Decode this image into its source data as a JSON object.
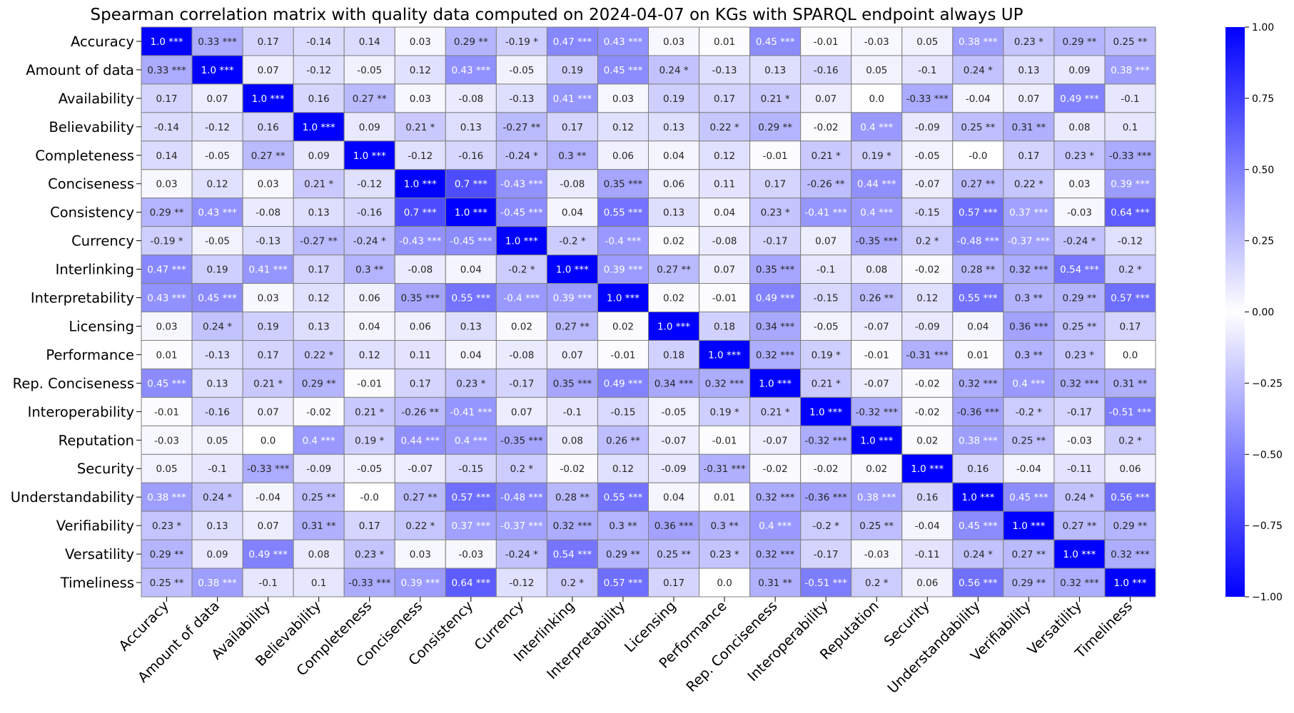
{
  "chart_data": {
    "type": "heatmap",
    "title": "Spearman correlation matrix with quality data computed on 2024-04-07 on KGs with SPARQL endpoint always UP",
    "labels": [
      "Accuracy",
      "Amount of data",
      "Availability",
      "Believability",
      "Completeness",
      "Conciseness",
      "Consistency",
      "Currency",
      "Interlinking",
      "Interpretability",
      "Licensing",
      "Performance",
      "Rep. Conciseness",
      "Interoperability",
      "Reputation",
      "Security",
      "Understandability",
      "Verifiability",
      "Versatility",
      "Timeliness"
    ],
    "cells": [
      [
        "1.0 ***",
        "0.33 ***",
        "0.17",
        "-0.14",
        "0.14",
        "0.03",
        "0.29 **",
        "-0.19 *",
        "0.47 ***",
        "0.43 ***",
        "0.03",
        "0.01",
        "0.45 ***",
        "-0.01",
        "-0.03",
        "0.05",
        "0.38 ***",
        "0.23 *",
        "0.29 **",
        "0.25 **"
      ],
      [
        "0.33 ***",
        "1.0 ***",
        "0.07",
        "-0.12",
        "-0.05",
        "0.12",
        "0.43 ***",
        "-0.05",
        "0.19",
        "0.45 ***",
        "0.24 *",
        "-0.13",
        "0.13",
        "-0.16",
        "0.05",
        "-0.1",
        "0.24 *",
        "0.13",
        "0.09",
        "0.38 ***"
      ],
      [
        "0.17",
        "0.07",
        "1.0 ***",
        "0.16",
        "0.27 **",
        "0.03",
        "-0.08",
        "-0.13",
        "0.41 ***",
        "0.03",
        "0.19",
        "0.17",
        "0.21 *",
        "0.07",
        "0.0",
        "-0.33 ***",
        "-0.04",
        "0.07",
        "0.49 ***",
        "-0.1"
      ],
      [
        "-0.14",
        "-0.12",
        "0.16",
        "1.0 ***",
        "0.09",
        "0.21 *",
        "0.13",
        "-0.27 **",
        "0.17",
        "0.12",
        "0.13",
        "0.22 *",
        "0.29 **",
        "-0.02",
        "0.4 ***",
        "-0.09",
        "0.25 **",
        "0.31 **",
        "0.08",
        "0.1"
      ],
      [
        "0.14",
        "-0.05",
        "0.27 **",
        "0.09",
        "1.0 ***",
        "-0.12",
        "-0.16",
        "-0.24 *",
        "0.3 **",
        "0.06",
        "0.04",
        "0.12",
        "-0.01",
        "0.21 *",
        "0.19 *",
        "-0.05",
        "-0.0",
        "0.17",
        "0.23 *",
        "-0.33 ***"
      ],
      [
        "0.03",
        "0.12",
        "0.03",
        "0.21 *",
        "-0.12",
        "1.0 ***",
        "0.7 ***",
        "-0.43 ***",
        "-0.08",
        "0.35 ***",
        "0.06",
        "0.11",
        "0.17",
        "-0.26 **",
        "0.44 ***",
        "-0.07",
        "0.27 **",
        "0.22 *",
        "0.03",
        "0.39 ***"
      ],
      [
        "0.29 **",
        "0.43 ***",
        "-0.08",
        "0.13",
        "-0.16",
        "0.7 ***",
        "1.0 ***",
        "-0.45 ***",
        "0.04",
        "0.55 ***",
        "0.13",
        "0.04",
        "0.23 *",
        "-0.41 ***",
        "0.4 ***",
        "-0.15",
        "0.57 ***",
        "0.37 ***",
        "-0.03",
        "0.64 ***"
      ],
      [
        "-0.19 *",
        "-0.05",
        "-0.13",
        "-0.27 **",
        "-0.24 *",
        "-0.43 ***",
        "-0.45 ***",
        "1.0 ***",
        "-0.2 *",
        "-0.4 ***",
        "0.02",
        "-0.08",
        "-0.17",
        "0.07",
        "-0.35 ***",
        "0.2 *",
        "-0.48 ***",
        "-0.37 ***",
        "-0.24 *",
        "-0.12"
      ],
      [
        "0.47 ***",
        "0.19",
        "0.41 ***",
        "0.17",
        "0.3 **",
        "-0.08",
        "0.04",
        "-0.2 *",
        "1.0 ***",
        "0.39 ***",
        "0.27 **",
        "0.07",
        "0.35 ***",
        "-0.1",
        "0.08",
        "-0.02",
        "0.28 **",
        "0.32 ***",
        "0.54 ***",
        "0.2 *"
      ],
      [
        "0.43 ***",
        "0.45 ***",
        "0.03",
        "0.12",
        "0.06",
        "0.35 ***",
        "0.55 ***",
        "-0.4 ***",
        "0.39 ***",
        "1.0 ***",
        "0.02",
        "-0.01",
        "0.49 ***",
        "-0.15",
        "0.26 **",
        "0.12",
        "0.55 ***",
        "0.3 **",
        "0.29 **",
        "0.57 ***"
      ],
      [
        "0.03",
        "0.24 *",
        "0.19",
        "0.13",
        "0.04",
        "0.06",
        "0.13",
        "0.02",
        "0.27 **",
        "0.02",
        "1.0 ***",
        "0.18",
        "0.34 ***",
        "-0.05",
        "-0.07",
        "-0.09",
        "0.04",
        "0.36 ***",
        "0.25 **",
        "0.17"
      ],
      [
        "0.01",
        "-0.13",
        "0.17",
        "0.22 *",
        "0.12",
        "0.11",
        "0.04",
        "-0.08",
        "0.07",
        "-0.01",
        "0.18",
        "1.0 ***",
        "0.32 ***",
        "0.19 *",
        "-0.01",
        "-0.31 ***",
        "0.01",
        "0.3 **",
        "0.23 *",
        "0.0"
      ],
      [
        "0.45 ***",
        "0.13",
        "0.21 *",
        "0.29 **",
        "-0.01",
        "0.17",
        "0.23 *",
        "-0.17",
        "0.35 ***",
        "0.49 ***",
        "0.34 ***",
        "0.32 ***",
        "1.0 ***",
        "0.21 *",
        "-0.07",
        "-0.02",
        "0.32 ***",
        "0.4 ***",
        "0.32 ***",
        "0.31 **"
      ],
      [
        "-0.01",
        "-0.16",
        "0.07",
        "-0.02",
        "0.21 *",
        "-0.26 **",
        "-0.41 ***",
        "0.07",
        "-0.1",
        "-0.15",
        "-0.05",
        "0.19 *",
        "0.21 *",
        "1.0 ***",
        "-0.32 ***",
        "-0.02",
        "-0.36 ***",
        "-0.2 *",
        "-0.17",
        "-0.51 ***"
      ],
      [
        "-0.03",
        "0.05",
        "0.0",
        "0.4 ***",
        "0.19 *",
        "0.44 ***",
        "0.4 ***",
        "-0.35 ***",
        "0.08",
        "0.26 **",
        "-0.07",
        "-0.01",
        "-0.07",
        "-0.32 ***",
        "1.0 ***",
        "0.02",
        "0.38 ***",
        "0.25 **",
        "-0.03",
        "0.2 *"
      ],
      [
        "0.05",
        "-0.1",
        "-0.33 ***",
        "-0.09",
        "-0.05",
        "-0.07",
        "-0.15",
        "0.2 *",
        "-0.02",
        "0.12",
        "-0.09",
        "-0.31 ***",
        "-0.02",
        "-0.02",
        "0.02",
        "1.0 ***",
        "0.16",
        "-0.04",
        "-0.11",
        "0.06"
      ],
      [
        "0.38 ***",
        "0.24 *",
        "-0.04",
        "0.25 **",
        "-0.0",
        "0.27 **",
        "0.57 ***",
        "-0.48 ***",
        "0.28 **",
        "0.55 ***",
        "0.04",
        "0.01",
        "0.32 ***",
        "-0.36 ***",
        "0.38 ***",
        "0.16",
        "1.0 ***",
        "0.45 ***",
        "0.24 *",
        "0.56 ***"
      ],
      [
        "0.23 *",
        "0.13",
        "0.07",
        "0.31 **",
        "0.17",
        "0.22 *",
        "0.37 ***",
        "-0.37 ***",
        "0.32 ***",
        "0.3 **",
        "0.36 ***",
        "0.3 **",
        "0.4 ***",
        "-0.2 *",
        "0.25 **",
        "-0.04",
        "0.45 ***",
        "1.0 ***",
        "0.27 **",
        "0.29 **"
      ],
      [
        "0.29 **",
        "0.09",
        "0.49 ***",
        "0.08",
        "0.23 *",
        "0.03",
        "-0.03",
        "-0.24 *",
        "0.54 ***",
        "0.29 **",
        "0.25 **",
        "0.23 *",
        "0.32 ***",
        "-0.17",
        "-0.03",
        "-0.11",
        "0.24 *",
        "0.27 **",
        "1.0 ***",
        "0.32 ***"
      ],
      [
        "0.25 **",
        "0.38 ***",
        "-0.1",
        "0.1",
        "-0.33 ***",
        "0.39 ***",
        "0.64 ***",
        "-0.12",
        "0.2 *",
        "0.57 ***",
        "0.17",
        "0.0",
        "0.31 **",
        "-0.51 ***",
        "0.2 *",
        "0.06",
        "0.56 ***",
        "0.29 **",
        "0.32 ***",
        "1.0 ***"
      ]
    ],
    "colorbar": {
      "range": [
        -1.0,
        1.0
      ],
      "ticks": [
        1.0,
        0.75,
        0.5,
        0.25,
        0.0,
        -0.25,
        -0.5,
        -0.75,
        -1.0
      ],
      "tick_labels": [
        "1.00",
        "0.75",
        "0.50",
        "0.25",
        "0.00",
        "−0.25",
        "−0.50",
        "−0.75",
        "−1.00"
      ]
    },
    "colors": {
      "positive": "#0000ff",
      "neutral": "#ffffff",
      "negative": "#0000ff",
      "cell_border": "#808080"
    },
    "grid": true,
    "legend": "colorbar-right"
  }
}
